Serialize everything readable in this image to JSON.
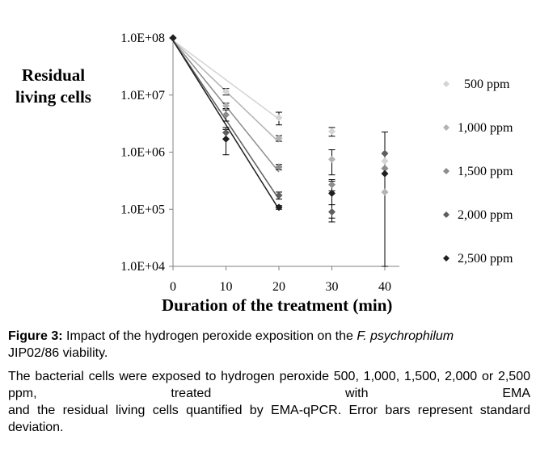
{
  "chart_data": {
    "type": "scatter",
    "ylabel": "Residual living cells",
    "xlabel": "Duration of the treatment (min)",
    "x_ticks": [
      "0",
      "10",
      "20",
      "30",
      "40"
    ],
    "y_ticks": [
      "1.0E+04",
      "1.0E+05",
      "1.0E+06",
      "1.0E+07",
      "1.0E+08"
    ],
    "y_scale": "log",
    "xlim": [
      0,
      40
    ],
    "ylim": [
      10000,
      100000000
    ],
    "grid": false,
    "legend_position": "right",
    "series": [
      {
        "name": "500 ppm",
        "color": "#d4d4d4",
        "x": [
          0,
          10,
          20,
          30,
          40
        ],
        "y": [
          100000000,
          11500000,
          4000000,
          2300000,
          700000
        ],
        "error": [
          0,
          1500000,
          1000000,
          400000,
          0
        ],
        "fit_x": [
          0,
          20
        ],
        "fit_y": [
          90000000,
          3800000
        ]
      },
      {
        "name": "1,000 ppm",
        "color": "#b3b3b3",
        "x": [
          0,
          10,
          20,
          30,
          40
        ],
        "y": [
          100000000,
          6500000,
          1750000,
          750000,
          200000
        ],
        "error": [
          0,
          700000,
          200000,
          350000,
          0
        ],
        "fit_x": [
          0,
          20
        ],
        "fit_y": [
          90000000,
          1500000
        ]
      },
      {
        "name": "1,500 ppm",
        "color": "#8c8c8c",
        "x": [
          0,
          10,
          20,
          30,
          40
        ],
        "y": [
          100000000,
          4500000,
          550000,
          270000,
          520000
        ],
        "error": [
          0,
          1000000,
          60000,
          60000,
          0
        ],
        "fit_x": [
          0,
          20
        ],
        "fit_y": [
          90000000,
          450000
        ]
      },
      {
        "name": "2,000 ppm",
        "color": "#5e5e5e",
        "x": [
          0,
          10,
          20,
          30,
          40
        ],
        "y": [
          100000000,
          2200000,
          175000,
          90000,
          950000
        ],
        "error": [
          0,
          500000,
          25000,
          30000,
          1300000
        ],
        "fit_x": [
          0,
          20
        ],
        "fit_y": [
          90000000,
          150000
        ]
      },
      {
        "name": "2,500 ppm",
        "color": "#1f1f1f",
        "x": [
          0,
          10,
          20,
          30,
          40
        ],
        "y": [
          100000000,
          1700000,
          108000,
          190000,
          420000
        ],
        "error": [
          0,
          800000,
          8000,
          120000,
          0
        ],
        "fit_x": [
          0,
          20
        ],
        "fit_y": [
          90000000,
          100000
        ]
      }
    ]
  },
  "caption": {
    "figure_label": "Figure 3:",
    "title_text": " Impact of the hydrogen peroxide exposition on the ",
    "species": "F. psychrophilum",
    "strain_text": "JIP02/86 viability.",
    "description_a": "The bacterial cells were exposed to hydrogen peroxide 500, 1,000, 1,500, 2,000 or 2,500 ppm, treated with EMA",
    "description_b": "and the residual living cells quantified by EMA-qPCR. Error bars represent standard deviation."
  }
}
